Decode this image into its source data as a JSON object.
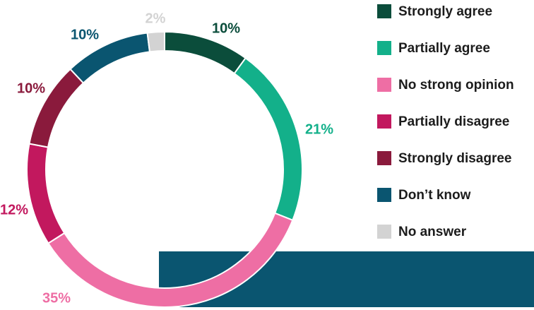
{
  "chart_data": {
    "type": "donut",
    "title": "",
    "categories": [
      "Strongly agree",
      "Partially agree",
      "No strong opinion",
      "Partially disagree",
      "Strongly disagree",
      "Don’t know",
      "No answer"
    ],
    "values": [
      10,
      21,
      35,
      12,
      10,
      10,
      2
    ],
    "value_labels": [
      "10%",
      "21%",
      "35%",
      "12%",
      "10%",
      "10%",
      "2%"
    ],
    "unit": "%",
    "colors": [
      "#0b4d3b",
      "#13b08a",
      "#ee6ea4",
      "#c2185e",
      "#8a1a3c",
      "#0a5570",
      "#d3d3d3"
    ],
    "legend_position": "right",
    "start_angle": "top, clockwise"
  }
}
